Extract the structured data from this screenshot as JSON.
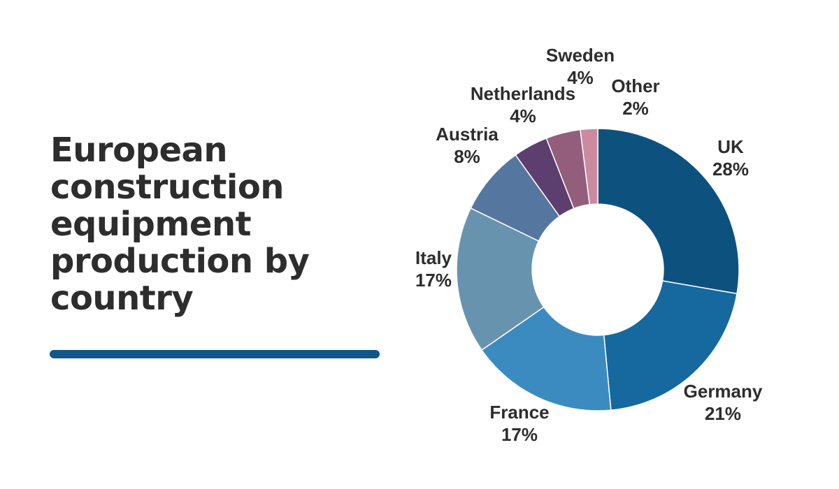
{
  "page": {
    "background_color": "#ffffff",
    "text_color": "#2d2d2d"
  },
  "header": {
    "title": "European construction equipment production by country",
    "title_lines": [
      "European",
      "construction",
      "equipment",
      "production by",
      "country"
    ],
    "underline_color": "#0f5689"
  },
  "chart_data": {
    "type": "pie",
    "subtype": "donut",
    "title": "European construction equipment production by country",
    "unit": "%",
    "start_angle_deg": 0,
    "direction": "clockwise",
    "donut_hole_ratio": 0.465,
    "legend_position": "none",
    "labels_position": "outside",
    "label_text_color": "#2d2d2d",
    "categories": [
      "UK",
      "Germany",
      "France",
      "Italy",
      "Austria",
      "Netherlands",
      "Sweden",
      "Other"
    ],
    "values": [
      28,
      21,
      17,
      17,
      8,
      4,
      4,
      2
    ],
    "slices": [
      {
        "name": "UK",
        "value": 28,
        "pct_label": "28%",
        "color": "#0d527f"
      },
      {
        "name": "Germany",
        "value": 21,
        "pct_label": "21%",
        "color": "#15699e"
      },
      {
        "name": "France",
        "value": 17,
        "pct_label": "17%",
        "color": "#3b8bc1"
      },
      {
        "name": "Italy",
        "value": 17,
        "pct_label": "17%",
        "color": "#6893ae"
      },
      {
        "name": "Austria",
        "value": 8,
        "pct_label": "8%",
        "color": "#55779f"
      },
      {
        "name": "Netherlands",
        "value": 4,
        "pct_label": "4%",
        "color": "#5c3e6f"
      },
      {
        "name": "Sweden",
        "value": 4,
        "pct_label": "4%",
        "color": "#935e7c"
      },
      {
        "name": "Other",
        "value": 2,
        "pct_label": "2%",
        "color": "#cc8a9e"
      }
    ]
  }
}
